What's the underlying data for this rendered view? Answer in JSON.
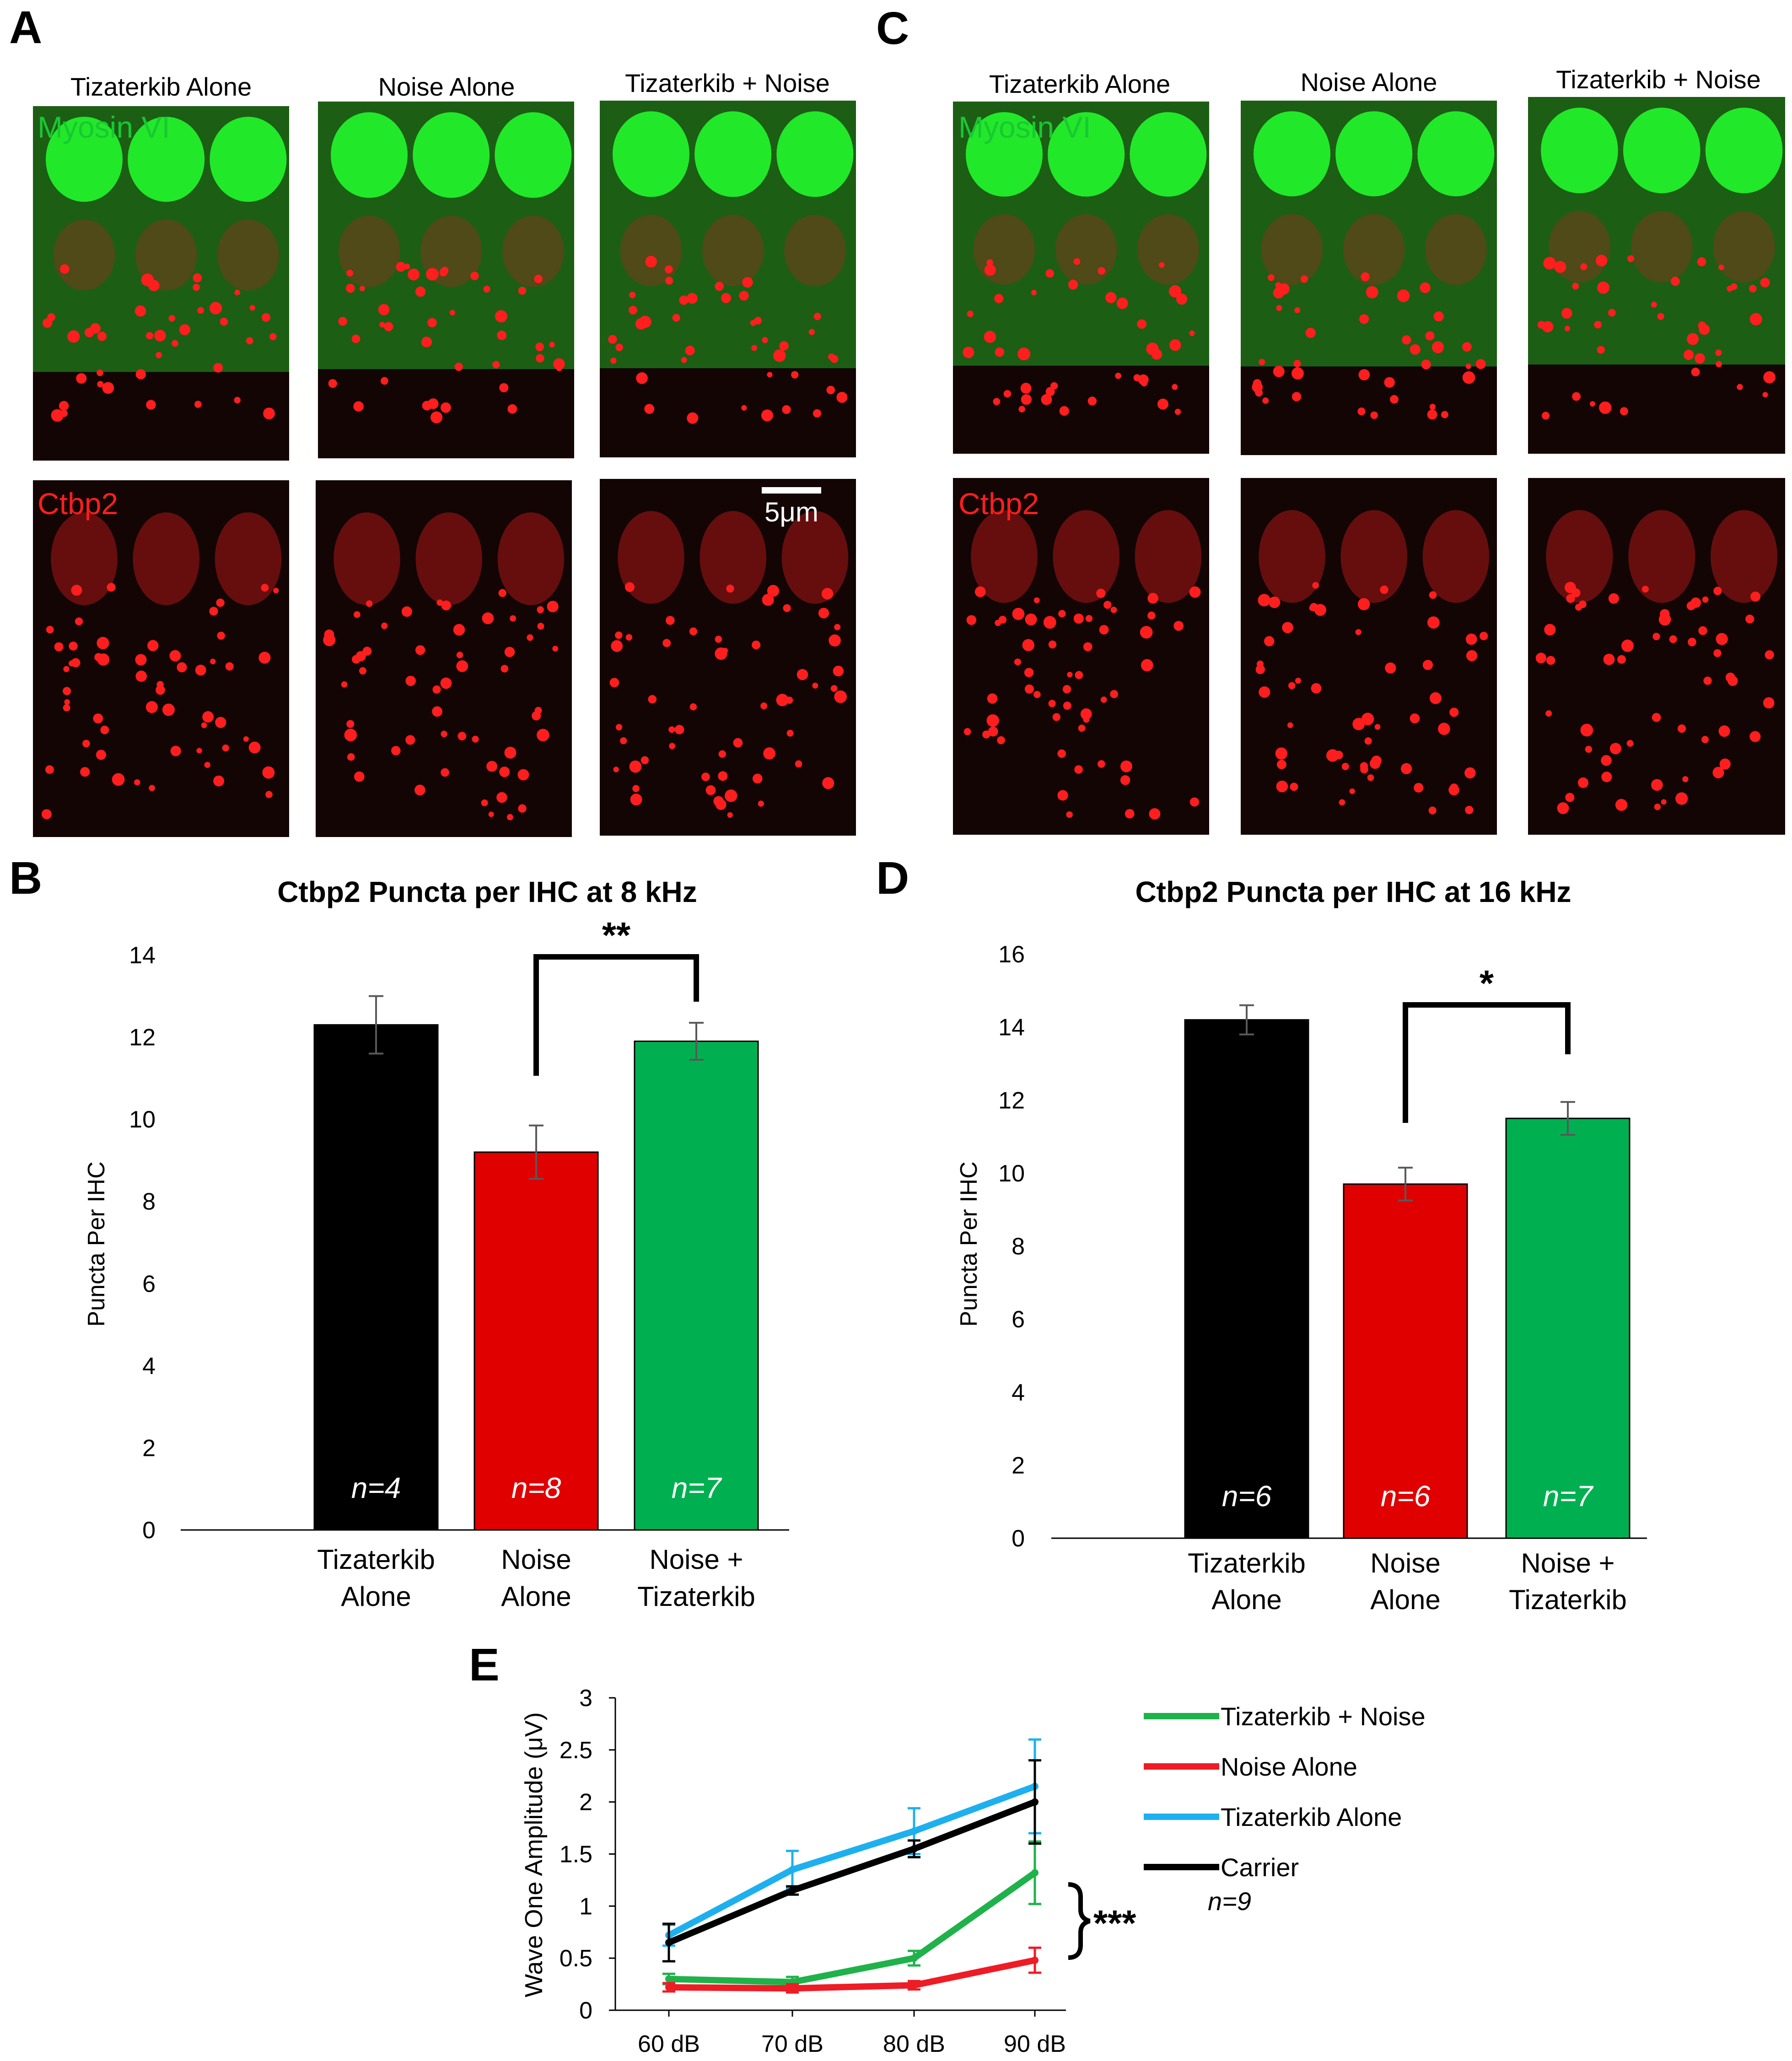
{
  "panel_labels": {
    "A": "A",
    "B": "B",
    "C": "C",
    "D": "D",
    "E": "E"
  },
  "micrographs": {
    "A": {
      "titles": [
        "Tizaterkib Alone",
        "Noise Alone",
        "Tizaterkib + Noise"
      ],
      "top_channel": "Myosin VI",
      "bottom_channel": "Ctbp2",
      "scale_bar": "5μm"
    },
    "C": {
      "titles": [
        "Tizaterkib Alone",
        "Noise Alone",
        "Tizaterkib + Noise"
      ],
      "top_channel": "Myosin VI",
      "bottom_channel": "Ctbp2"
    },
    "colors": {
      "green_channel": "#19c832",
      "red_channel": "#ff1e1e",
      "background": "#120504"
    }
  },
  "chart_data": [
    {
      "panel": "B",
      "type": "bar",
      "title": "Ctbp2 Puncta per IHC at 8 kHz",
      "ylabel": "Puncta Per IHC",
      "ylim": [
        0,
        14
      ],
      "yticks": [
        0,
        2,
        4,
        6,
        8,
        10,
        12,
        14
      ],
      "categories": [
        [
          "Tizaterkib",
          "Alone"
        ],
        [
          "Noise",
          "Alone"
        ],
        [
          "Noise   +",
          "Tizaterkib"
        ]
      ],
      "values": [
        12.3,
        9.2,
        11.9
      ],
      "errors": [
        0.7,
        0.65,
        0.45
      ],
      "bar_labels": [
        "n=4",
        "n=8",
        "n=7"
      ],
      "colors": [
        "#000000",
        "#e00000",
        "#00b050"
      ],
      "significance": {
        "from": 1,
        "to": 2,
        "label": "**"
      }
    },
    {
      "panel": "D",
      "type": "bar",
      "title": "Ctbp2 Puncta per IHC at 16 kHz",
      "ylabel": "Puncta Per IHC",
      "ylim": [
        0,
        16
      ],
      "yticks": [
        0,
        2,
        4,
        6,
        8,
        10,
        12,
        14,
        16
      ],
      "categories": [
        [
          "Tizaterkib",
          "Alone"
        ],
        [
          "Noise",
          "Alone"
        ],
        [
          "Noise   +",
          "Tizaterkib"
        ]
      ],
      "values": [
        14.2,
        9.7,
        11.5
      ],
      "errors": [
        0.4,
        0.45,
        0.45
      ],
      "bar_labels": [
        "n=6",
        "n=6",
        "n=7"
      ],
      "colors": [
        "#000000",
        "#e00000",
        "#00b050"
      ],
      "significance": {
        "from": 1,
        "to": 2,
        "label": "*"
      }
    },
    {
      "panel": "E",
      "type": "line",
      "ylabel": "Wave One Amplitude (μV)",
      "ylim": [
        0,
        3
      ],
      "yticks": [
        "0",
        "0.5",
        "1",
        "1.5",
        "2",
        "2.5",
        "3"
      ],
      "x": [
        "60 dB",
        "70 dB",
        "80 dB",
        "90 dB"
      ],
      "series": [
        {
          "name": "Tizaterkib + Noise",
          "color": "#1fb24a",
          "values": [
            0.3,
            0.27,
            0.5,
            1.32
          ],
          "errors": [
            0.05,
            0.05,
            0.07,
            0.3
          ]
        },
        {
          "name": "Noise Alone",
          "color": "#ee1c25",
          "values": [
            0.22,
            0.21,
            0.24,
            0.48
          ],
          "errors": [
            0.04,
            0.04,
            0.04,
            0.12
          ]
        },
        {
          "name": "Tizaterkib Alone",
          "color": "#1eb0ee",
          "values": [
            0.72,
            1.35,
            1.72,
            2.15
          ],
          "errors": [
            0.1,
            0.18,
            0.22,
            0.45
          ]
        },
        {
          "name": "Carrier",
          "color": "#000000",
          "values": [
            0.65,
            1.15,
            1.55,
            2.0
          ],
          "errors": [
            0.18,
            0.04,
            0.08,
            0.4
          ]
        }
      ],
      "n_label": "n=9",
      "significance": {
        "label": "***"
      }
    }
  ]
}
